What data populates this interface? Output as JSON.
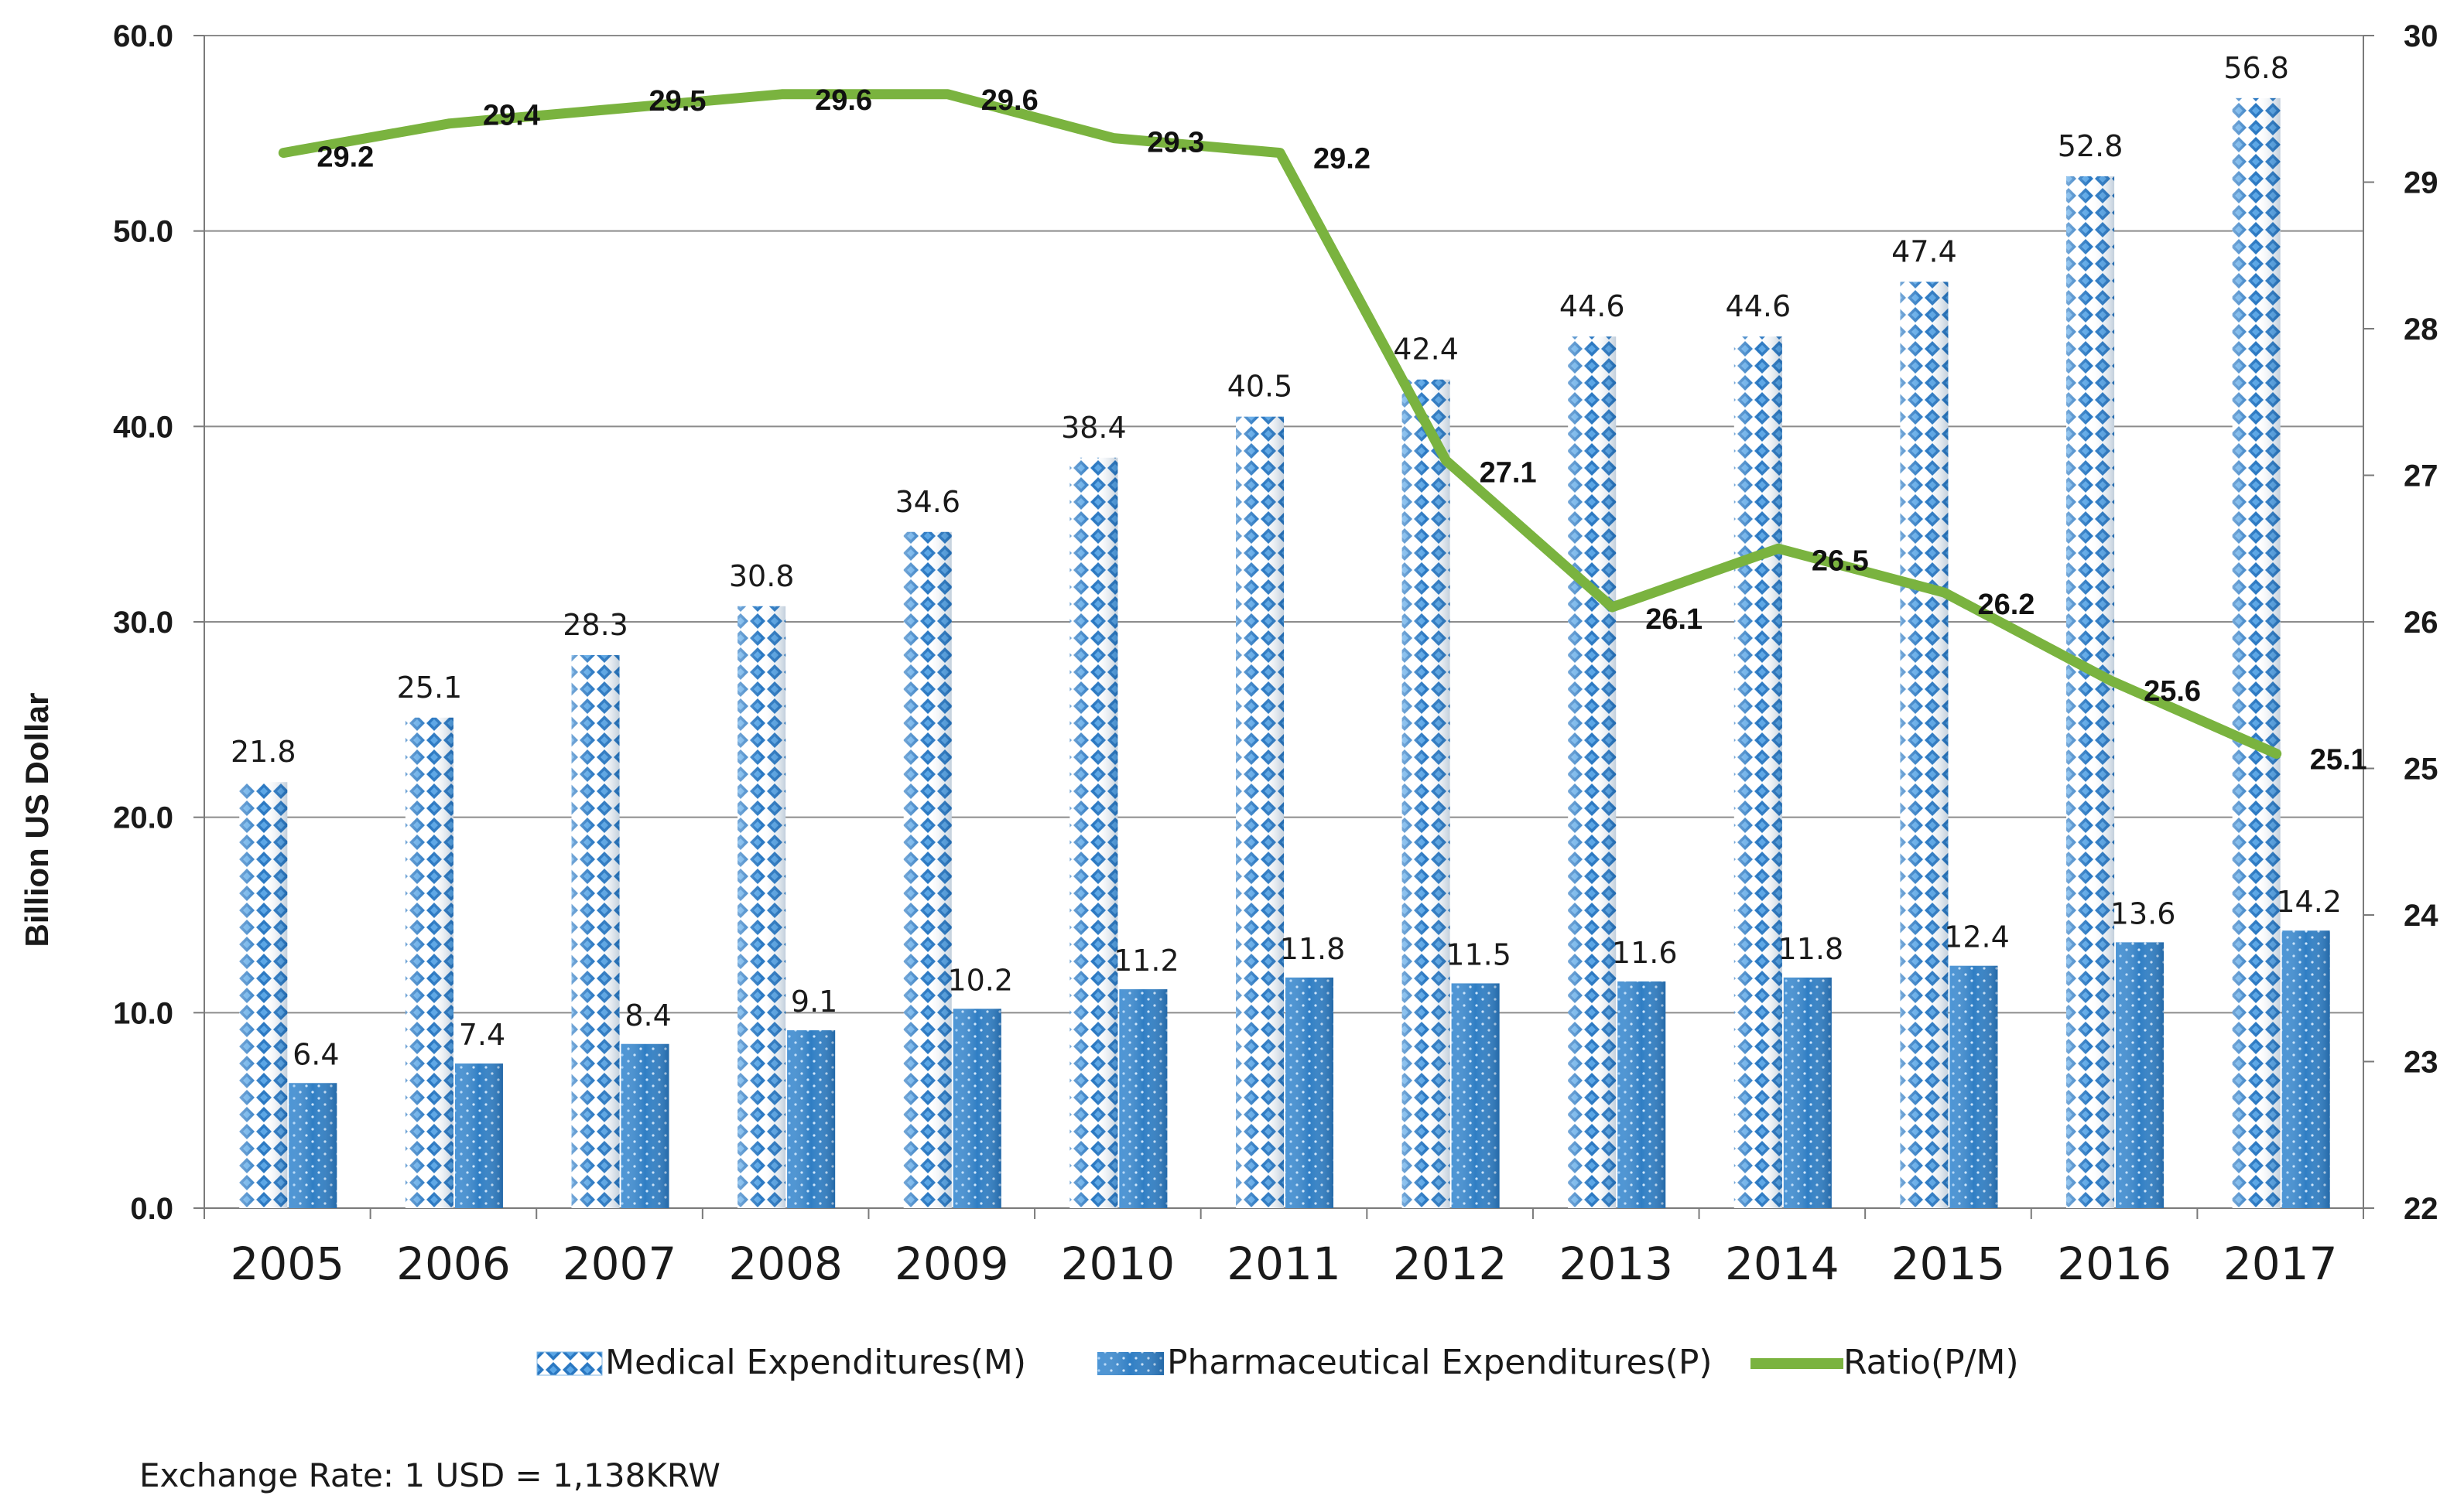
{
  "chart_data": {
    "type": "bar",
    "title": "",
    "xlabel": "",
    "ylabel": "Billion US Dollar",
    "ylim": [
      0,
      60
    ],
    "y_ticks": [
      "0.0",
      "10.0",
      "20.0",
      "30.0",
      "40.0",
      "50.0",
      "60.0"
    ],
    "y2lim": [
      22,
      30
    ],
    "y2_ticks": [
      "22",
      "23",
      "24",
      "25",
      "26",
      "27",
      "28",
      "29",
      "30"
    ],
    "grid": true,
    "categories": [
      "2005",
      "2006",
      "2007",
      "2008",
      "2009",
      "2010",
      "2011",
      "2012",
      "2013",
      "2014",
      "2015",
      "2016",
      "2017"
    ],
    "series": [
      {
        "name": "Medical Expenditures(M)",
        "kind": "bar",
        "axis": "left",
        "pattern": "diamond",
        "values": [
          21.8,
          25.1,
          28.3,
          30.8,
          34.6,
          38.4,
          40.5,
          42.4,
          44.6,
          44.6,
          47.4,
          52.8,
          56.8
        ],
        "labels": [
          "21.8",
          "25.1",
          "28.3",
          "30.8",
          "34.6",
          "38.4",
          "40.5",
          "42.4",
          "44.6",
          "44.6",
          "47.4",
          "52.8",
          "56.8"
        ]
      },
      {
        "name": "Pharmaceutical Expenditures(P)",
        "kind": "bar",
        "axis": "left",
        "pattern": "dots",
        "values": [
          6.4,
          7.4,
          8.4,
          9.1,
          10.2,
          11.2,
          11.8,
          11.5,
          11.6,
          11.8,
          12.4,
          13.6,
          14.2
        ],
        "labels": [
          "6.4",
          "7.4",
          "8.4",
          "9.1",
          "10.2",
          "11.2",
          "11.8",
          "11.5",
          "11.6",
          "11.8",
          "12.4",
          "13.6",
          "14.2"
        ]
      },
      {
        "name": "Ratio(P/M)",
        "kind": "line",
        "axis": "right",
        "values": [
          29.2,
          29.4,
          29.5,
          29.6,
          29.6,
          29.3,
          29.2,
          27.1,
          26.1,
          26.5,
          26.2,
          25.6,
          25.1
        ],
        "labels": [
          "29.2",
          "29.4",
          "29.5",
          "29.6",
          "29.6",
          "29.3",
          "29.2",
          "27.1",
          "26.1",
          "26.5",
          "26.2",
          "25.6",
          "25.1"
        ]
      }
    ],
    "legend": [
      "Medical Expenditures(M)",
      "Pharmaceutical Expenditures(P)",
      "Ratio(P/M)"
    ],
    "legend_position": "bottom",
    "annotation": "Exchange Rate: 1 USD = 1,138KRW"
  },
  "colors": {
    "medical_light": "#ffffff",
    "medical_dark": "#2a78c2",
    "pharma": "#2f7ec4",
    "pharma_dark": "#1f5f9a",
    "ratio_line": "#7ab33f",
    "grid": "#8c8c8c",
    "axis": "#7a7a7a"
  }
}
